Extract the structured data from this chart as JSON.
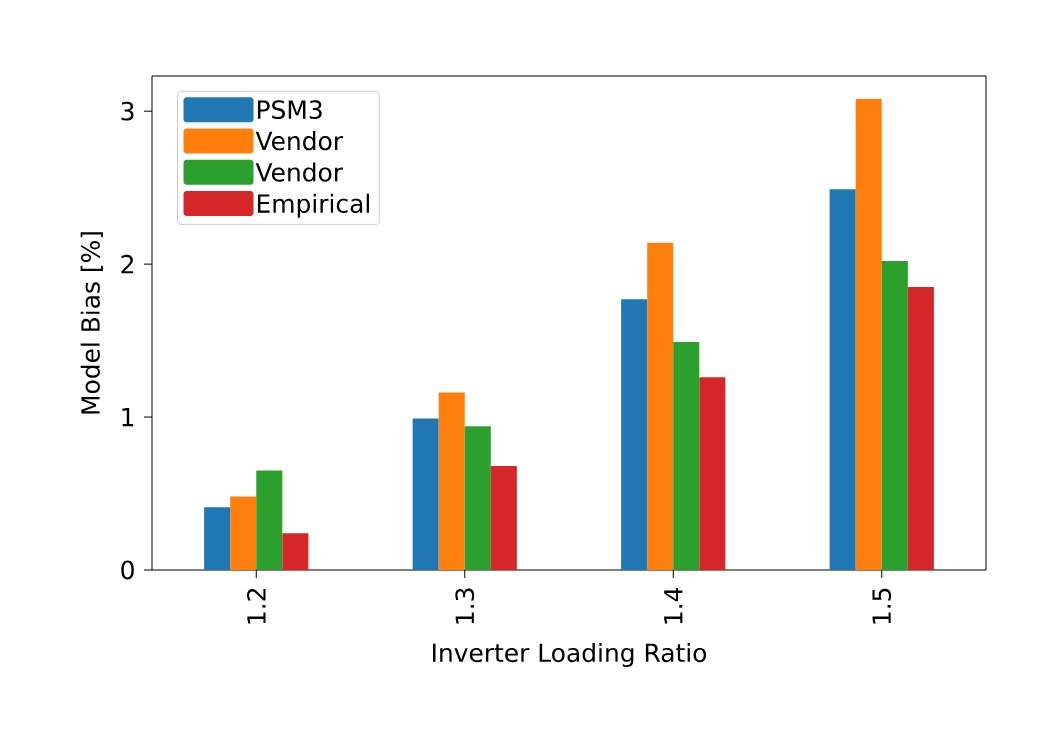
{
  "chart_data": {
    "type": "bar",
    "xlabel": "Inverter Loading Ratio",
    "ylabel": "Model Bias [%]",
    "categories": [
      "1.2",
      "1.3",
      "1.4",
      "1.5"
    ],
    "series": [
      {
        "name": "PSM3",
        "color": "#1f77b4",
        "values": [
          0.41,
          0.99,
          1.77,
          2.49
        ]
      },
      {
        "name": "Vendor",
        "color": "#ff7f0e",
        "values": [
          0.48,
          1.16,
          2.14,
          3.08
        ]
      },
      {
        "name": "Vendor",
        "color": "#2ca02c",
        "values": [
          0.65,
          0.94,
          1.49,
          2.02
        ]
      },
      {
        "name": "Empirical",
        "color": "#d62728",
        "values": [
          0.24,
          0.68,
          1.26,
          1.85
        ]
      }
    ],
    "ylim": [
      0,
      3.23
    ],
    "yticks": [
      0,
      1,
      2,
      3
    ],
    "grid": false,
    "legend": "top left"
  }
}
